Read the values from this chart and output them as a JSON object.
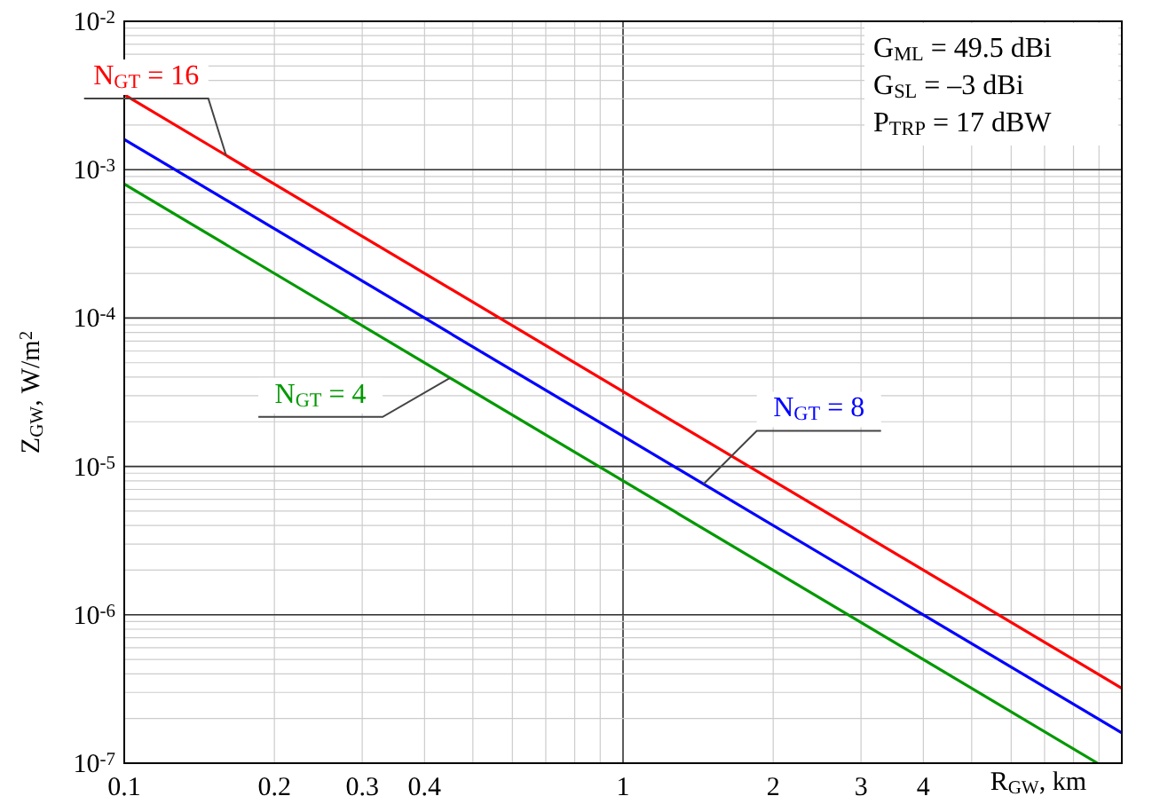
{
  "chart_data": {
    "type": "line",
    "xlabel": "R$_{GW}$, km",
    "ylabel": "Z$_{GW}$,  W/m$^{2}$",
    "log": "xy",
    "grid": true,
    "line_style": "solid",
    "xlim": [
      0.1,
      10
    ],
    "ylim": [
      1e-07,
      0.01
    ],
    "xticks": [
      0.1,
      0.2,
      0.3,
      0.4,
      1,
      2,
      3,
      4
    ],
    "yticks": [
      {
        "value": 1e-07,
        "label": "10$^{-7}$"
      },
      {
        "value": 1e-06,
        "label": "10$^{-6}$"
      },
      {
        "value": 1e-05,
        "label": "10$^{-5}$"
      },
      {
        "value": 0.0001,
        "label": "10$^{-4}$"
      },
      {
        "value": 0.001,
        "label": "10$^{-3}$"
      },
      {
        "value": 0.01,
        "label": "10$^{-2}$"
      }
    ],
    "series": [
      {
        "name": "N$_{GT}$ = 16",
        "color": "#ff0000",
        "x": [
          0.1,
          10
        ],
        "values": [
          0.0032,
          3.2e-07
        ]
      },
      {
        "name": "N$_{GT}$ = 8",
        "color": "#0000ff",
        "x": [
          0.1,
          10
        ],
        "values": [
          0.0016,
          1.6e-07
        ]
      },
      {
        "name": "N$_{GT}$ = 4",
        "color": "#009900",
        "x": [
          0.1,
          8.94
        ],
        "values": [
          0.0008,
          1e-07
        ]
      }
    ],
    "annotations": [
      "G$_{ML}$ = 49.5 dBi",
      "G$_{SL}$ = –3 dBi",
      "P$_{TRP}$ = 17 dBW"
    ]
  }
}
